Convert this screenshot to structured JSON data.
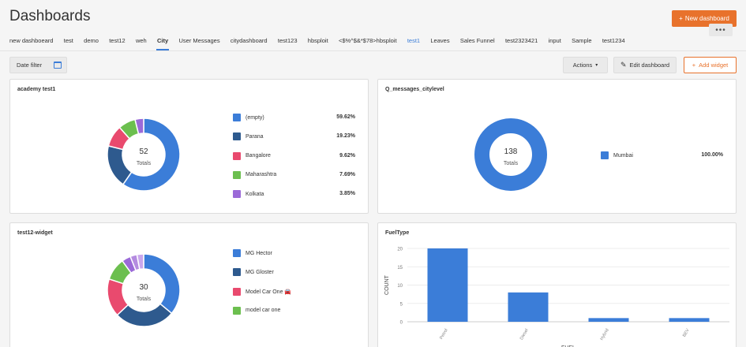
{
  "page_title": "Dashboards",
  "new_dashboard_label": "New dashboard",
  "more_icon": "ellipsis-icon",
  "tabs": [
    {
      "label": "new dashboeard",
      "active": false,
      "blue": false
    },
    {
      "label": "test",
      "active": false,
      "blue": false
    },
    {
      "label": "demo",
      "active": false,
      "blue": false
    },
    {
      "label": "test12",
      "active": false,
      "blue": false
    },
    {
      "label": "weh",
      "active": false,
      "blue": false
    },
    {
      "label": "City",
      "active": true,
      "blue": false
    },
    {
      "label": "User Messages",
      "active": false,
      "blue": false
    },
    {
      "label": "citydashboard",
      "active": false,
      "blue": false
    },
    {
      "label": "test123",
      "active": false,
      "blue": false
    },
    {
      "label": "hbsploit",
      "active": false,
      "blue": false
    },
    {
      "label": "<$%^$&*$78>hbsploit",
      "active": false,
      "blue": false
    },
    {
      "label": "test1",
      "active": false,
      "blue": true
    },
    {
      "label": "Leaves",
      "active": false,
      "blue": false
    },
    {
      "label": "Sales Funnel",
      "active": false,
      "blue": false
    },
    {
      "label": "test2323421",
      "active": false,
      "blue": false
    },
    {
      "label": "input",
      "active": false,
      "blue": false
    },
    {
      "label": "Sample",
      "active": false,
      "blue": false
    },
    {
      "label": "test1234",
      "active": false,
      "blue": false
    }
  ],
  "toolbar": {
    "date_filter_label": "Date filter",
    "actions_label": "Actions",
    "edit_label": "Edit dashboard",
    "add_widget_label": "Add widget"
  },
  "colors": {
    "accent": "#e8722c",
    "blue": "#3b7dd8",
    "navy": "#2e5a8e",
    "pink": "#e94a6e",
    "green": "#6cbf4f",
    "purple": "#9b6ad8"
  },
  "widgets": {
    "academy": {
      "title": "academy test1",
      "total": "52",
      "total_label": "Totals",
      "slices": [
        {
          "label": "(empty)",
          "pct": "59.62%",
          "value": 59.62,
          "color": "#3b7dd8"
        },
        {
          "label": "Parana",
          "pct": "19.23%",
          "value": 19.23,
          "color": "#2e5a8e"
        },
        {
          "label": "Bangalore",
          "pct": "9.62%",
          "value": 9.62,
          "color": "#e94a6e"
        },
        {
          "label": "Maharashtra",
          "pct": "7.69%",
          "value": 7.69,
          "color": "#6cbf4f"
        },
        {
          "label": "Kolkata",
          "pct": "3.85%",
          "value": 3.85,
          "color": "#9b6ad8"
        }
      ]
    },
    "messages": {
      "title": "Q_messages_citylevel",
      "total": "138",
      "total_label": "Totals",
      "slices": [
        {
          "label": "Mumbai",
          "pct": "100.00%",
          "value": 100,
          "color": "#3b7dd8"
        }
      ]
    },
    "test12": {
      "title": "test12-widget",
      "total": "30",
      "total_label": "Totals",
      "slices": [
        {
          "label": "MG Hector",
          "value": 36,
          "color": "#3b7dd8"
        },
        {
          "label": "MG Gloster",
          "value": 27,
          "color": "#2e5a8e"
        },
        {
          "label": "Model Car One 🚘",
          "value": 17,
          "color": "#e94a6e"
        },
        {
          "label": "model car one",
          "value": 10,
          "color": "#6cbf4f"
        },
        {
          "label": "",
          "value": 4,
          "color": "#9b6ad8"
        },
        {
          "label": "",
          "value": 3,
          "color": "#b48be0"
        },
        {
          "label": "",
          "value": 3,
          "color": "#c9a7ec"
        }
      ]
    },
    "fuel": {
      "title": "FuelType"
    }
  },
  "chart_data": {
    "type": "bar",
    "title": "FuelType",
    "categories": [
      "Petrol",
      "Diesel",
      "Hybrid",
      "BEV"
    ],
    "values": [
      20,
      8,
      1,
      1
    ],
    "xlabel": "FUEL",
    "ylabel": "COUNT",
    "ylim": [
      0,
      20
    ],
    "yticks": [
      0,
      5,
      10,
      15,
      20
    ],
    "color": "#3b7dd8",
    "grid": true
  }
}
